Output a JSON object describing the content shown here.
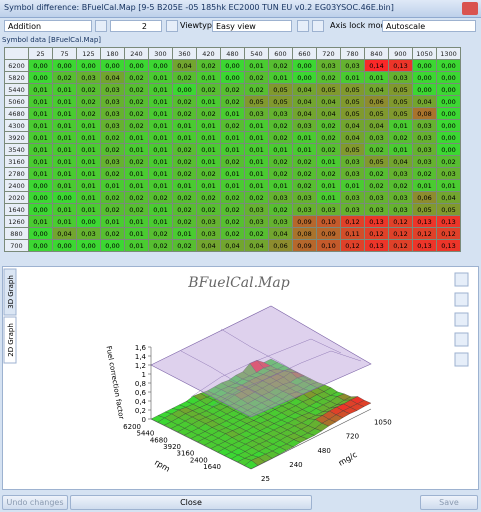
{
  "window": {
    "title": "Symbol difference: BFuelCal.Map [9-5 B205E -05 185hk EC2000 TUN EU  v0.2 EG03YSOC.46E.bin]"
  },
  "toolbar": {
    "operation": "Addition",
    "value": "2",
    "viewtype_label": "Viewtype",
    "viewtype": "Easy view",
    "axis_lock_label": "Axis lock mode",
    "axis_lock": "Autoscale"
  },
  "table": {
    "tab": "Symbol data [BFuelCal.Map]",
    "columns": [
      25,
      75,
      125,
      180,
      240,
      300,
      360,
      420,
      480,
      540,
      600,
      660,
      720,
      780,
      840,
      900,
      1050,
      1300
    ],
    "rows": [
      {
        "label": 6200,
        "cells": [
          "0,00",
          "0,00",
          "0,00",
          "0,00",
          "0,00",
          "0,00",
          "0,04",
          "0,02",
          "0,00",
          "0,01",
          "0,02",
          "0,00",
          "0,03",
          "0,03",
          "0,14",
          "0,13",
          "0,00",
          "0,00"
        ]
      },
      {
        "label": 5820,
        "cells": [
          "0,00",
          "0,02",
          "0,03",
          "0,04",
          "0,02",
          "0,01",
          "0,02",
          "0,01",
          "0,00",
          "0,02",
          "0,01",
          "0,00",
          "0,02",
          "0,01",
          "0,01",
          "0,03",
          "0,00",
          "0,00"
        ]
      },
      {
        "label": 5440,
        "cells": [
          "0,01",
          "0,01",
          "0,02",
          "0,03",
          "0,02",
          "0,01",
          "0,00",
          "0,02",
          "0,02",
          "0,02",
          "0,05",
          "0,04",
          "0,05",
          "0,05",
          "0,04",
          "0,05",
          "0,00",
          "0,00"
        ]
      },
      {
        "label": 5060,
        "cells": [
          "0,01",
          "0,01",
          "0,02",
          "0,03",
          "0,02",
          "0,01",
          "0,02",
          "0,01",
          "0,02",
          "0,05",
          "0,05",
          "0,04",
          "0,04",
          "0,05",
          "0,06",
          "0,05",
          "0,04",
          "0,00"
        ]
      },
      {
        "label": 4680,
        "cells": [
          "0,01",
          "0,01",
          "0,02",
          "0,03",
          "0,02",
          "0,01",
          "0,02",
          "0,02",
          "0,01",
          "0,03",
          "0,03",
          "0,04",
          "0,04",
          "0,05",
          "0,05",
          "0,05",
          "0,08",
          "0,00"
        ]
      },
      {
        "label": 4300,
        "cells": [
          "0,01",
          "0,01",
          "0,01",
          "0,03",
          "0,02",
          "0,01",
          "0,01",
          "0,01",
          "0,02",
          "0,01",
          "0,02",
          "0,03",
          "0,02",
          "0,04",
          "0,04",
          "0,01",
          "0,03",
          "0,00"
        ]
      },
      {
        "label": 3920,
        "cells": [
          "0,01",
          "0,01",
          "0,01",
          "0,02",
          "0,01",
          "0,01",
          "0,01",
          "0,01",
          "0,01",
          "0,01",
          "0,02",
          "0,01",
          "0,02",
          "0,04",
          "0,03",
          "0,02",
          "0,03",
          "0,00"
        ]
      },
      {
        "label": 3540,
        "cells": [
          "0,01",
          "0,01",
          "0,01",
          "0,02",
          "0,01",
          "0,01",
          "0,02",
          "0,01",
          "0,01",
          "0,01",
          "0,01",
          "0,01",
          "0,02",
          "0,05",
          "0,02",
          "0,01",
          "0,03",
          "0,00"
        ]
      },
      {
        "label": 3160,
        "cells": [
          "0,01",
          "0,01",
          "0,01",
          "0,03",
          "0,02",
          "0,01",
          "0,02",
          "0,01",
          "0,02",
          "0,01",
          "0,02",
          "0,02",
          "0,01",
          "0,03",
          "0,05",
          "0,04",
          "0,03",
          "0,02"
        ]
      },
      {
        "label": 2780,
        "cells": [
          "0,01",
          "0,01",
          "0,01",
          "0,02",
          "0,01",
          "0,01",
          "0,02",
          "0,02",
          "0,01",
          "0,01",
          "0,02",
          "0,02",
          "0,02",
          "0,03",
          "0,02",
          "0,03",
          "0,02",
          "0,03"
        ]
      },
      {
        "label": 2400,
        "cells": [
          "0,00",
          "0,01",
          "0,01",
          "0,01",
          "0,01",
          "0,01",
          "0,01",
          "0,01",
          "0,01",
          "0,01",
          "0,01",
          "0,02",
          "0,01",
          "0,01",
          "0,02",
          "0,02",
          "0,01",
          "0,01"
        ]
      },
      {
        "label": 2020,
        "cells": [
          "0,00",
          "0,00",
          "0,01",
          "0,02",
          "0,02",
          "0,02",
          "0,02",
          "0,02",
          "0,02",
          "0,02",
          "0,03",
          "0,03",
          "0,01",
          "0,03",
          "0,03",
          "0,03",
          "0,06",
          "0,04"
        ]
      },
      {
        "label": 1640,
        "cells": [
          "0,00",
          "0,01",
          "0,01",
          "0,02",
          "0,02",
          "0,01",
          "0,02",
          "0,02",
          "0,02",
          "0,03",
          "0,02",
          "0,03",
          "0,03",
          "0,03",
          "0,03",
          "0,03",
          "0,05",
          "0,05"
        ]
      },
      {
        "label": 1260,
        "cells": [
          "0,01",
          "0,01",
          "0,00",
          "0,01",
          "0,01",
          "0,01",
          "0,02",
          "0,03",
          "0,02",
          "0,03",
          "0,03",
          "0,09",
          "0,10",
          "0,12",
          "0,13",
          "0,12",
          "0,13",
          "0,13"
        ]
      },
      {
        "label": 880,
        "cells": [
          "0,00",
          "0,04",
          "0,03",
          "0,02",
          "0,01",
          "0,02",
          "0,01",
          "0,03",
          "0,02",
          "0,02",
          "0,04",
          "0,08",
          "0,09",
          "0,11",
          "0,12",
          "0,12",
          "0,12",
          "0,12"
        ]
      },
      {
        "label": 700,
        "cells": [
          "0,00",
          "0,00",
          "0,00",
          "0,00",
          "0,01",
          "0,02",
          "0,02",
          "0,04",
          "0,04",
          "0,04",
          "0,06",
          "0,09",
          "0,10",
          "0,12",
          "0,13",
          "0,12",
          "0,13",
          "0,13"
        ]
      }
    ]
  },
  "graph": {
    "tabs": [
      "3D Graph",
      "2D Graph"
    ],
    "title": "BFuelCal.Map",
    "z_label": "Fuel correction factor",
    "x_label": "rpm",
    "y_label": "mg/c",
    "z_ticks": [
      "0",
      "0,2",
      "0,4",
      "0,6",
      "0,8",
      "1",
      "1,2",
      "1,4",
      "1,6"
    ],
    "rpm_ticks": [
      6200,
      5440,
      4680,
      3920,
      3160,
      2400,
      1640
    ],
    "load_ticks": [
      25,
      240,
      480,
      720,
      1050
    ]
  },
  "buttons": {
    "undo": "Undo changes",
    "close": "Close",
    "save": "Save"
  }
}
